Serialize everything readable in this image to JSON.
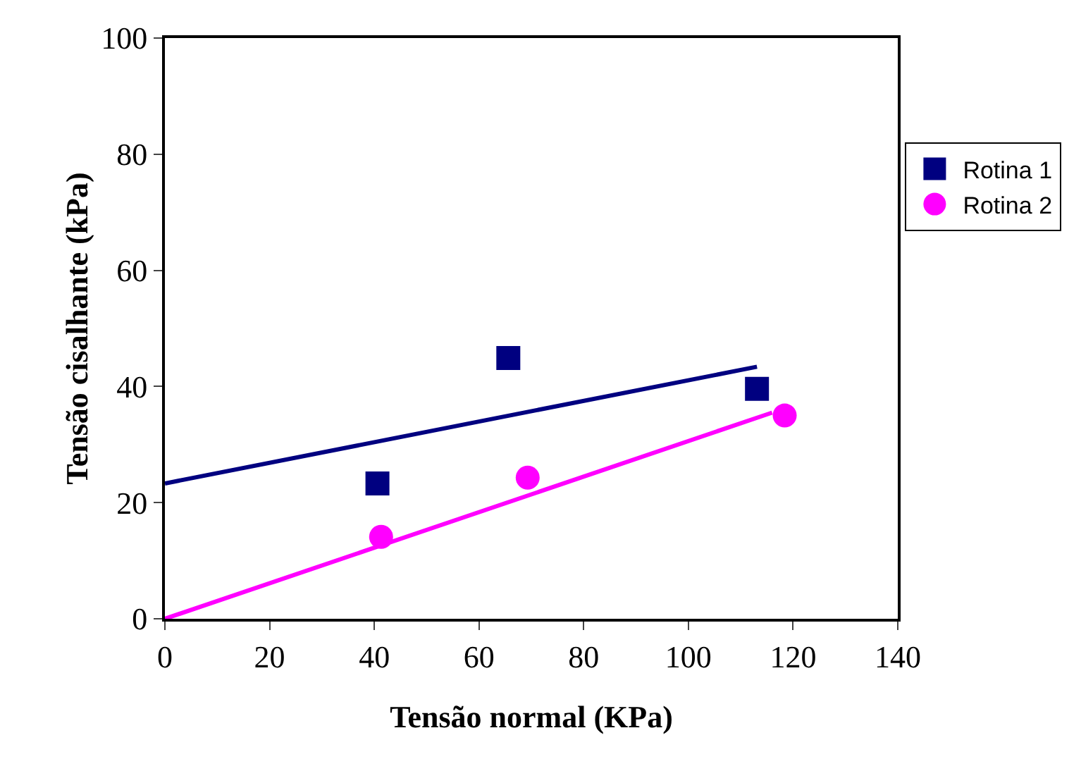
{
  "chart_data": {
    "type": "scatter",
    "xlabel": "Tensão normal (KPa)",
    "ylabel": "Tensão cisalhante (kPa)",
    "xlim": [
      0,
      140
    ],
    "xticks": [
      0,
      20,
      40,
      60,
      80,
      100,
      120,
      140
    ],
    "ylim": [
      0,
      100
    ],
    "yticks": [
      0,
      20,
      40,
      60,
      80,
      100
    ],
    "grid": false,
    "legend": "right",
    "series": [
      {
        "name": "Rotina 1",
        "color": "#000080",
        "marker": "square",
        "x": [
          40.6,
          65.6,
          113.1
        ],
        "values": [
          23.3,
          44.9,
          39.6
        ]
      },
      {
        "name": "Rotina 2",
        "color": "#ff00ff",
        "marker": "circle",
        "x": [
          41.3,
          69.3,
          118.4
        ],
        "values": [
          14.1,
          24.3,
          35.0
        ]
      },
      {
        "type": "line",
        "color": "#000080",
        "line_style": "solid",
        "x": [
          0,
          113.1
        ],
        "values": [
          23.3,
          43.4
        ]
      },
      {
        "type": "line",
        "color": "#ff00ff",
        "line_style": "solid",
        "x": [
          0,
          116
        ],
        "values": [
          0,
          35.5
        ]
      }
    ]
  }
}
